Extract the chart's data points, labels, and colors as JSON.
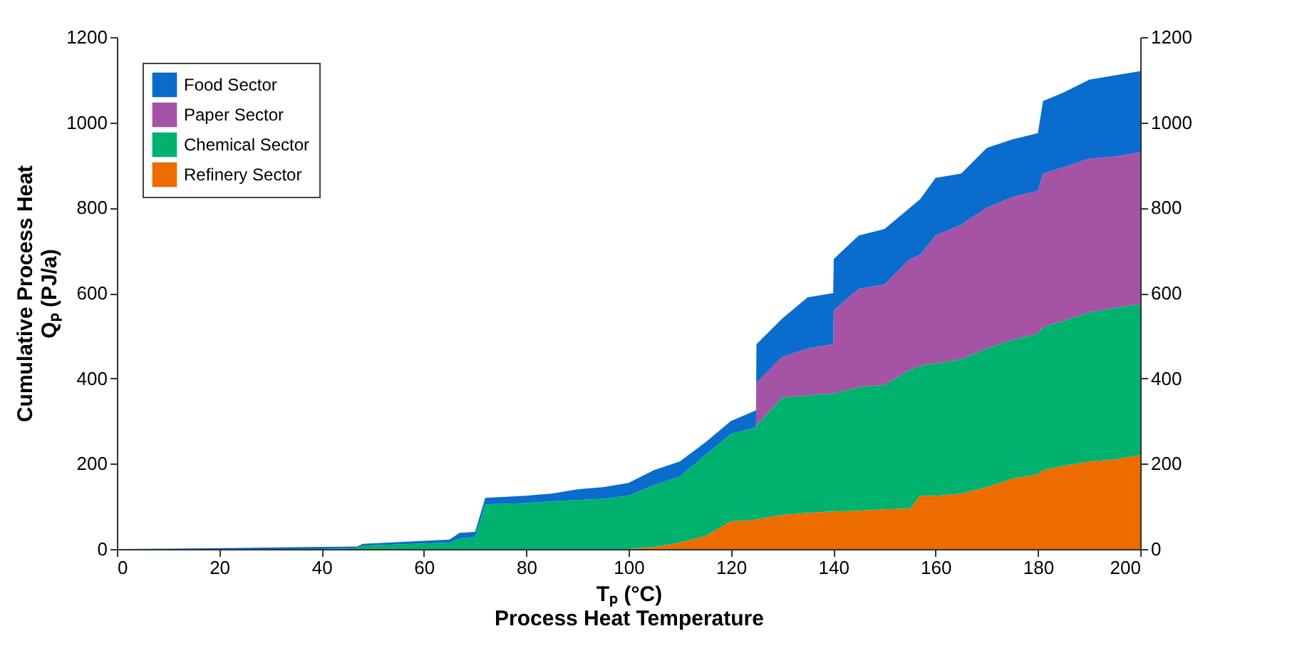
{
  "chart_data": {
    "type": "area",
    "stacked": true,
    "xlabel": "Tₚ (°C)\nProcess Heat Temperature",
    "ylabel": "Cumulative Process Heat\nQₚ (PJ/a)",
    "x": [
      0,
      20,
      40,
      47,
      48,
      65,
      67,
      70,
      72,
      80,
      85,
      90,
      95,
      100,
      105,
      110,
      115,
      120,
      124.9,
      125,
      130,
      135,
      140,
      140.1,
      145,
      150,
      155,
      157,
      160,
      165,
      170,
      175,
      180,
      181,
      185,
      190,
      195,
      200
    ],
    "series": [
      {
        "name": "Refinery Sector",
        "color": "#ec6c00",
        "values": [
          0,
          0,
          0,
          0,
          0,
          0,
          0,
          0,
          0,
          0,
          0,
          0,
          0,
          0,
          5,
          15,
          30,
          65,
          68,
          70,
          80,
          85,
          88,
          88,
          90,
          93,
          95,
          125,
          125,
          130,
          145,
          165,
          175,
          185,
          195,
          205,
          210,
          220
        ]
      },
      {
        "name": "Chemical Sector",
        "color": "#00b26e",
        "values": [
          0,
          0,
          0,
          2,
          8,
          15,
          25,
          28,
          105,
          108,
          112,
          115,
          118,
          125,
          145,
          155,
          190,
          205,
          217,
          220,
          275,
          275,
          277,
          277,
          290,
          292,
          325,
          305,
          310,
          315,
          325,
          325,
          330,
          335,
          340,
          350,
          355,
          355
        ]
      },
      {
        "name": "Paper Sector",
        "color": "#a553a5",
        "values": [
          0,
          0,
          0,
          0,
          0,
          0,
          0,
          0,
          0,
          0,
          0,
          0,
          0,
          0,
          0,
          0,
          0,
          0,
          0,
          100,
          95,
          110,
          115,
          195,
          230,
          235,
          260,
          260,
          300,
          315,
          330,
          335,
          335,
          360,
          360,
          360,
          355,
          355
        ]
      },
      {
        "name": "Food Sector",
        "color": "#0a6ccc",
        "values": [
          0,
          2,
          5,
          4,
          4,
          7,
          13,
          12,
          15,
          17,
          18,
          25,
          27,
          30,
          35,
          35,
          30,
          30,
          40,
          90,
          90,
          120,
          120,
          120,
          125,
          130,
          120,
          130,
          135,
          120,
          140,
          135,
          135,
          170,
          175,
          185,
          190,
          190
        ]
      }
    ],
    "xlim": [
      0,
      200
    ],
    "xticks": [
      0,
      20,
      40,
      60,
      80,
      100,
      120,
      140,
      160,
      180,
      200
    ],
    "ylim": [
      0,
      1200
    ],
    "yticks": [
      0,
      200,
      400,
      600,
      800,
      1000,
      1200
    ],
    "y2lim": [
      0,
      1200
    ],
    "y2ticks": [
      0,
      200,
      400,
      600,
      800,
      1000,
      1200
    ],
    "legend": "top left",
    "grid": false
  }
}
